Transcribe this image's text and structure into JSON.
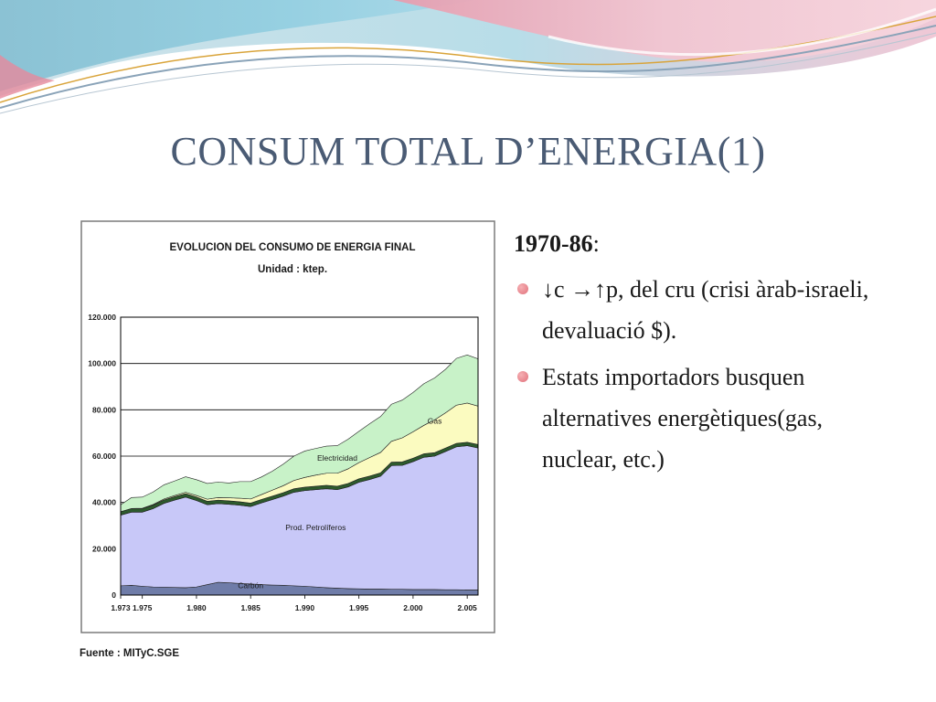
{
  "slide": {
    "title": "CONSUM TOTAL D’ENERGIA(1)",
    "heading": "1970-86",
    "heading_suffix": ":",
    "bullets": [
      "↓c →↑p, del cru (crisi àrab-israeli, devaluació $).",
      "Estats importadors busquen alternatives energètiques(gas, nuclear, etc.)"
    ],
    "bullet_icon": "pink-bullet-dot",
    "colors": {
      "title": "#4a5b74",
      "bullet": "#e07a80"
    }
  },
  "chart_data": {
    "type": "area",
    "stacked": true,
    "title": "EVOLUCION DEL CONSUMO DE ENERGIA FINAL",
    "subtitle": "Unidad : ktep.",
    "source": "Fuente : MITyC.SGE",
    "x": [
      1973,
      1974,
      1975,
      1976,
      1977,
      1978,
      1979,
      1980,
      1981,
      1982,
      1983,
      1984,
      1985,
      1986,
      1987,
      1988,
      1989,
      1990,
      1991,
      1992,
      1993,
      1994,
      1995,
      1996,
      1997,
      1998,
      1999,
      2000,
      2001,
      2002,
      2003,
      2004,
      2005,
      2006
    ],
    "ylim": [
      0,
      120000
    ],
    "yticks": [
      0,
      20000,
      40000,
      60000,
      80000,
      100000,
      120000
    ],
    "ytick_labels": [
      "0",
      "20.000",
      "40.000",
      "60.000",
      "80.000",
      "100.000",
      "120.000"
    ],
    "xtick_values": [
      1973,
      1975,
      1980,
      1985,
      1990,
      1995,
      2000,
      2005
    ],
    "xtick_labels": [
      "1.973",
      "1.975",
      "1.980",
      "1.985",
      "1.990",
      "1.995",
      "2.000",
      "2.005"
    ],
    "grid": "horizontal",
    "series": [
      {
        "name": "Carbón",
        "color": "#6f7ca8",
        "label_x": 1985,
        "label_y": 3000,
        "values": [
          4000,
          4200,
          3800,
          3500,
          3400,
          3300,
          3200,
          3500,
          4500,
          5500,
          5300,
          5000,
          4800,
          4500,
          4300,
          4200,
          4000,
          3800,
          3500,
          3200,
          3000,
          2800,
          2700,
          2600,
          2600,
          2500,
          2500,
          2400,
          2400,
          2400,
          2300,
          2300,
          2200,
          2200
        ]
      },
      {
        "name": "Prod. Petrolíferos",
        "color": "#c8c8f8",
        "label_x": 1991,
        "label_y": 28000,
        "values": [
          30500,
          31600,
          32000,
          33800,
          36200,
          37700,
          39100,
          37300,
          34500,
          34000,
          33900,
          33800,
          33400,
          35300,
          36900,
          38500,
          40400,
          41300,
          42000,
          42700,
          42500,
          43900,
          46000,
          47300,
          48700,
          53400,
          53500,
          55200,
          57100,
          57600,
          59700,
          61700,
          62300,
          61300
        ]
      },
      {
        "name": "",
        "color": "#2d5a2d",
        "values": [
          1500,
          1500,
          1500,
          1500,
          1500,
          1500,
          1500,
          1500,
          1500,
          1500,
          1500,
          1500,
          1500,
          1500,
          1500,
          1500,
          1500,
          1500,
          1500,
          1500,
          1500,
          1500,
          1500,
          1500,
          1500,
          1500,
          1500,
          1500,
          1500,
          1500,
          1500,
          1500,
          1500,
          1500
        ]
      },
      {
        "name": "Gas",
        "color": "#fbfbc0",
        "label_x": 2002,
        "label_y": 74000,
        "values": [
          0,
          100,
          200,
          300,
          400,
          500,
          600,
          700,
          900,
          1100,
          1300,
          1500,
          1800,
          2100,
          2600,
          3000,
          3600,
          4200,
          4800,
          5200,
          5600,
          6300,
          7000,
          8000,
          8800,
          9000,
          10400,
          11400,
          12300,
          14200,
          15200,
          16500,
          16900,
          16600
        ]
      },
      {
        "name": "Electricidad",
        "color": "#c8f2c8",
        "label_x": 1993,
        "label_y": 58000,
        "values": [
          3000,
          4700,
          4800,
          5400,
          6100,
          6300,
          6700,
          6800,
          6800,
          6700,
          6400,
          7200,
          7500,
          7600,
          8200,
          9300,
          10500,
          11400,
          11500,
          11700,
          11900,
          12800,
          13500,
          14600,
          15500,
          16000,
          16300,
          17000,
          18000,
          18100,
          18800,
          20200,
          20800,
          20400
        ]
      }
    ]
  }
}
